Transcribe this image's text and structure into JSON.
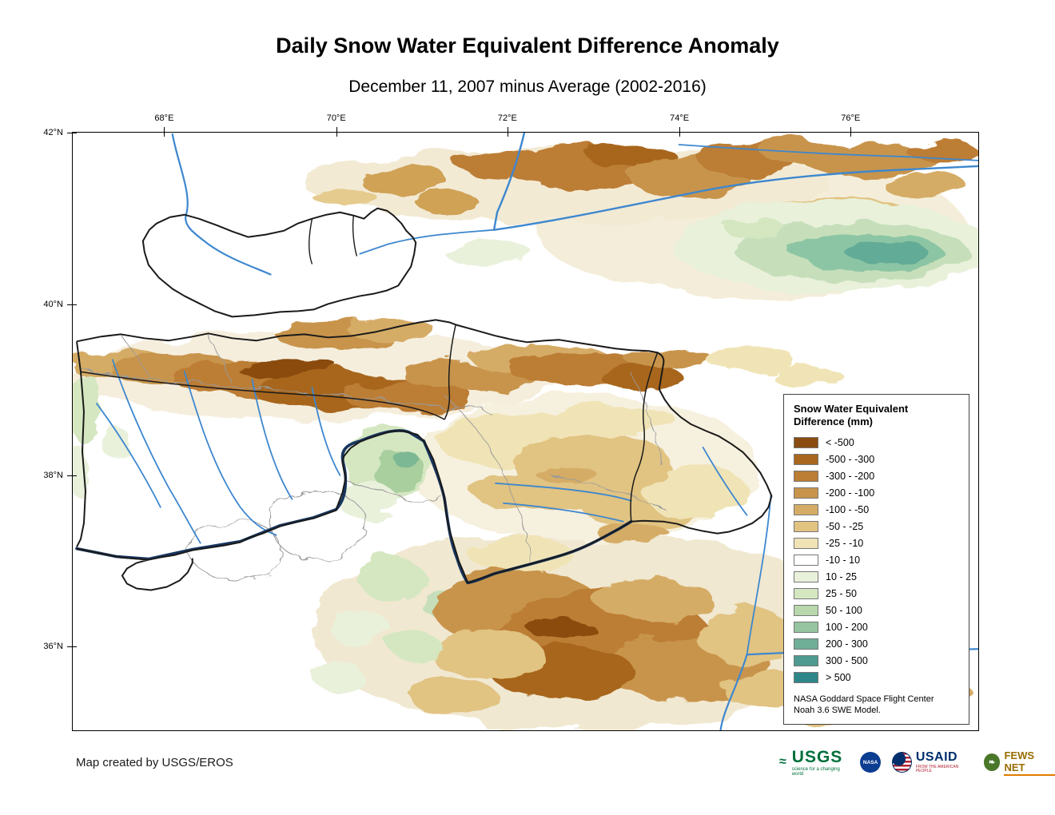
{
  "title": "Daily Snow Water Equivalent Difference Anomaly",
  "subtitle": "December 11, 2007 minus Average (2002-2016)",
  "map": {
    "x_ticks": [
      {
        "label": "68°E",
        "pos": 10.1
      },
      {
        "label": "70°E",
        "pos": 29.1
      },
      {
        "label": "72°E",
        "pos": 48.0
      },
      {
        "label": "74°E",
        "pos": 67.0
      },
      {
        "label": "76°E",
        "pos": 85.9
      }
    ],
    "y_ticks": [
      {
        "label": "42°N",
        "pos": 0.0
      },
      {
        "label": "40°N",
        "pos": 28.7
      },
      {
        "label": "38°N",
        "pos": 57.3
      },
      {
        "label": "36°N",
        "pos": 86.0
      }
    ]
  },
  "legend": {
    "title_line1": "Snow Water Equivalent",
    "title_line2": "Difference (mm)",
    "entries": [
      {
        "label": "< -500",
        "color": "#8a4c10"
      },
      {
        "label": "-500 - -300",
        "color": "#a8661e"
      },
      {
        "label": "-300 - -200",
        "color": "#bc7d34"
      },
      {
        "label": "-200 - -100",
        "color": "#c8944c"
      },
      {
        "label": "-100 - -50",
        "color": "#d5ac66"
      },
      {
        "label": "-50 - -25",
        "color": "#e1c382"
      },
      {
        "label": "-25 - -10",
        "color": "#f0e4b6"
      },
      {
        "label": "-10 - 10",
        "color": "#ffffff"
      },
      {
        "label": "10 - 25",
        "color": "#e9f1db"
      },
      {
        "label": "25 - 50",
        "color": "#d5e7c1"
      },
      {
        "label": "50 - 100",
        "color": "#b8d7ac"
      },
      {
        "label": "100 - 200",
        "color": "#96c4a0"
      },
      {
        "label": "200 - 300",
        "color": "#6fae97"
      },
      {
        "label": "300 - 500",
        "color": "#4d9a90"
      },
      {
        "label": "> 500",
        "color": "#2d8688"
      }
    ],
    "source_line1": "NASA Goddard Space Flight Center",
    "source_line2": "Noah 3.6 SWE Model."
  },
  "footer": {
    "credit": "Map created by USGS/EROS"
  },
  "logos": {
    "usgs": {
      "text": "USGS",
      "tagline": "science for a changing world"
    },
    "nasa": {
      "text": "NASA"
    },
    "usaid": {
      "text": "USAID",
      "tagline": "FROM THE AMERICAN PEOPLE"
    },
    "fews": {
      "text": "FEWS NET"
    }
  }
}
